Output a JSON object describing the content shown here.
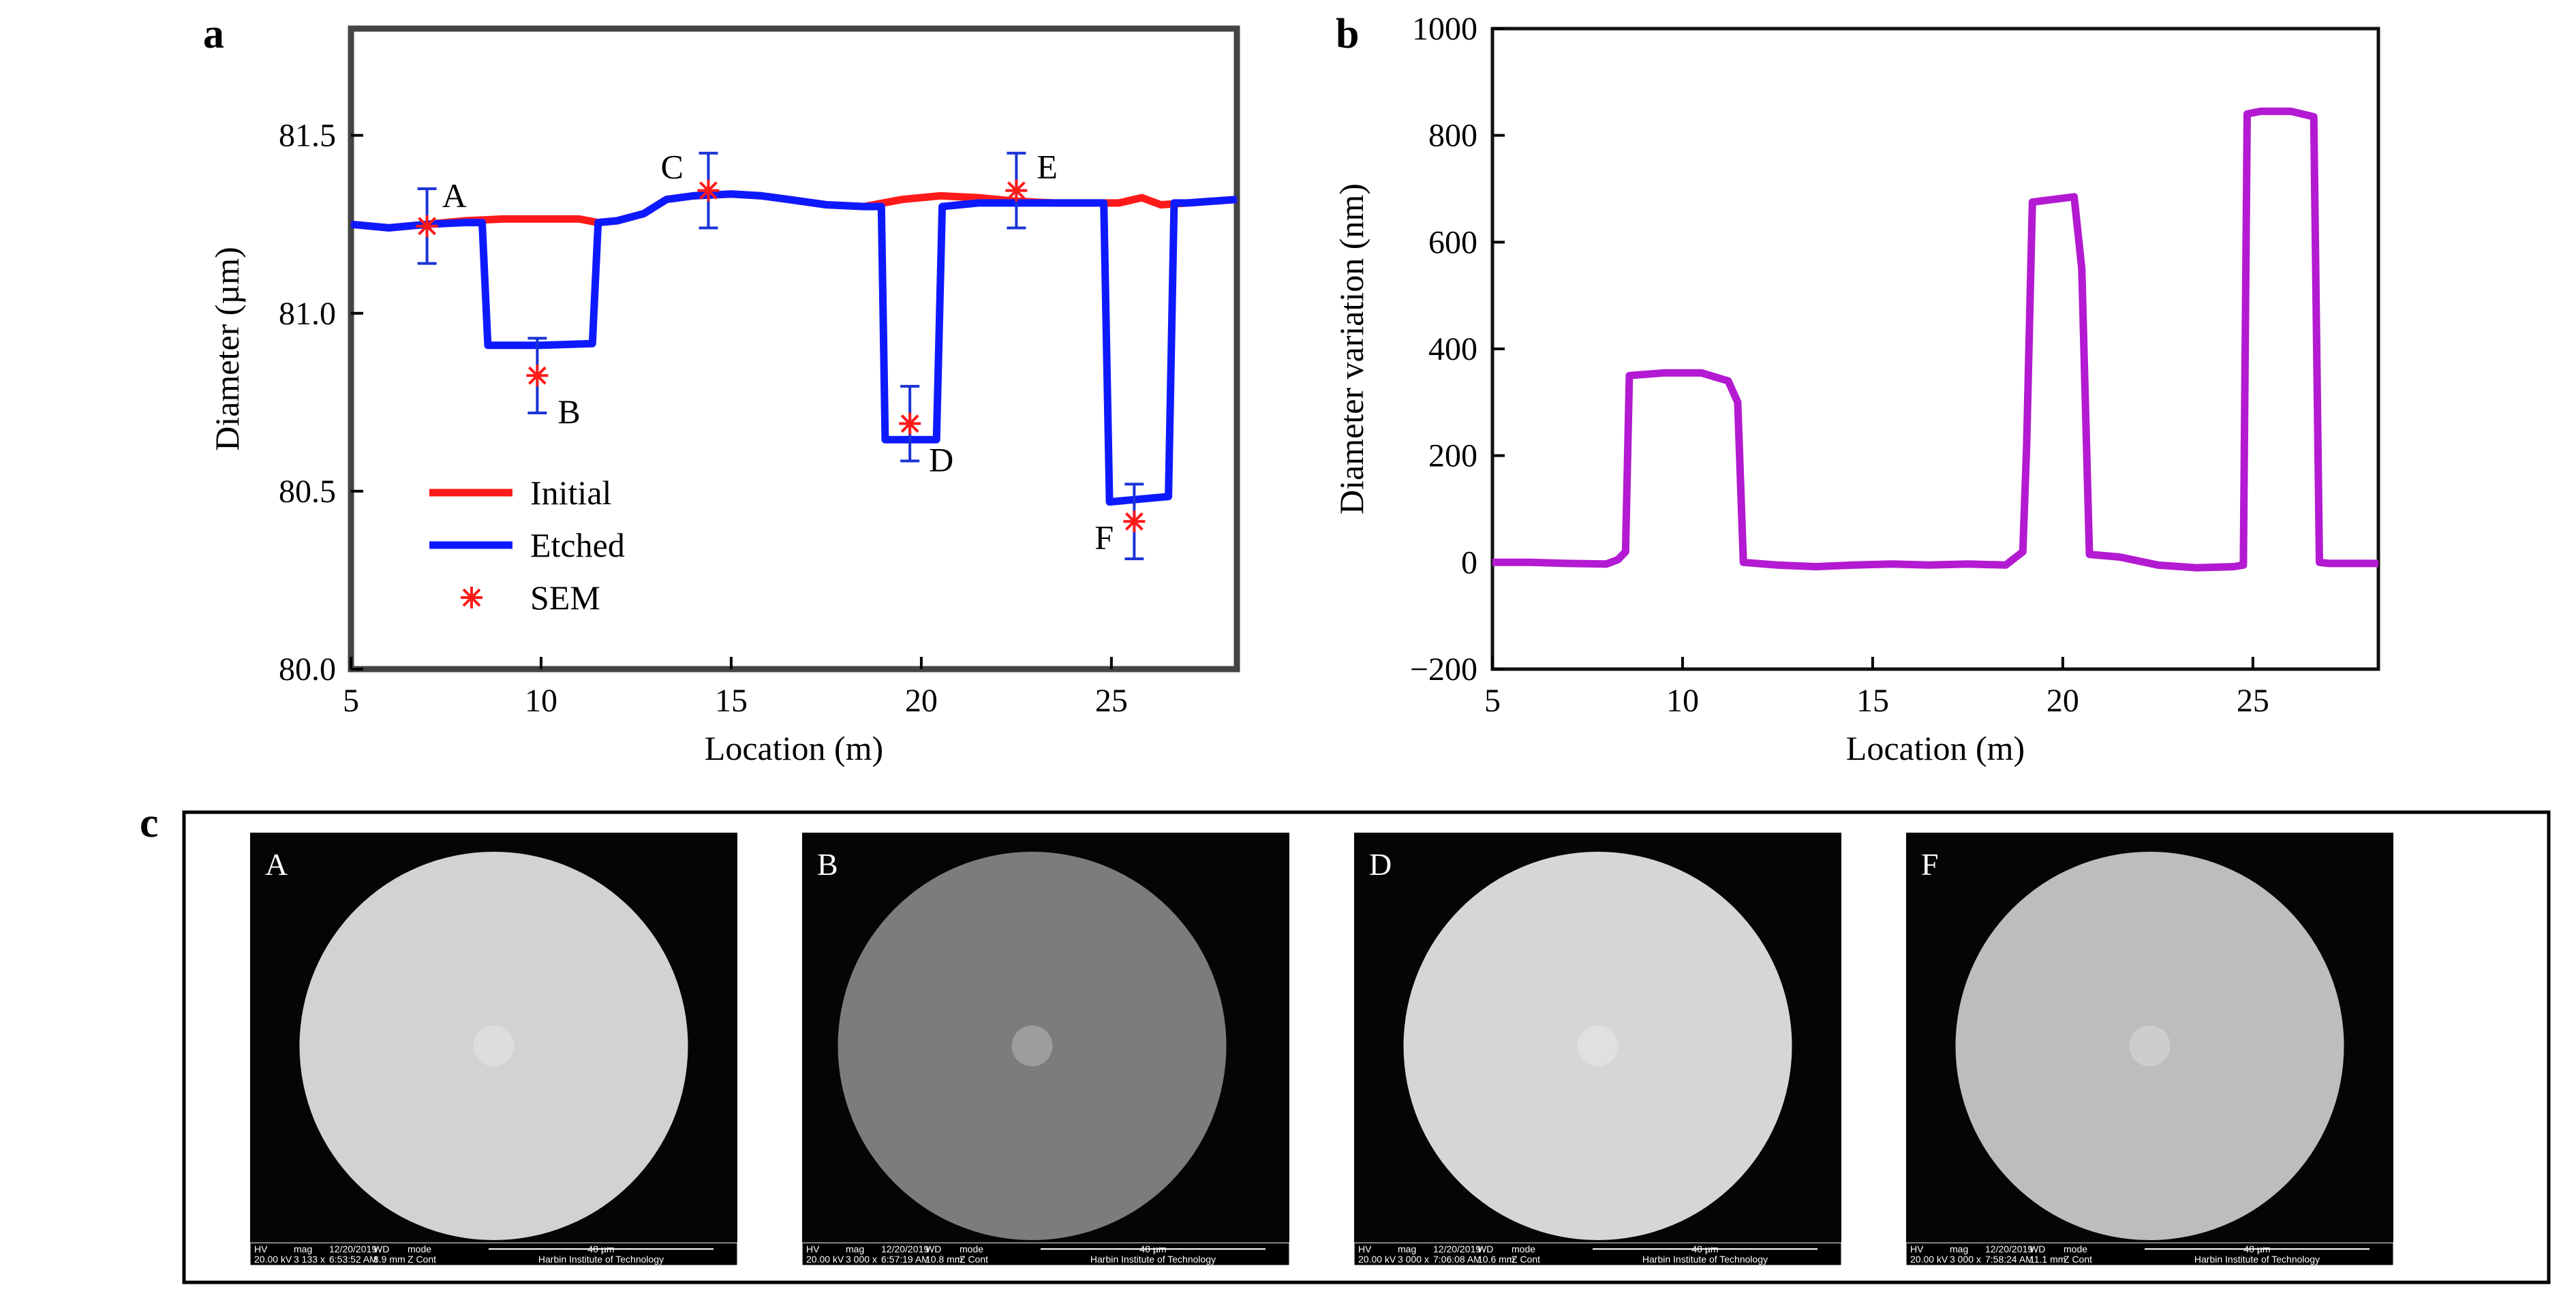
{
  "panels": {
    "a": "a",
    "b": "b",
    "c": "c"
  },
  "chart_data": [
    {
      "panel": "a",
      "type": "line",
      "xlabel": "Location (m)",
      "ylabel": "Diameter (µm)",
      "xlim": [
        5,
        28.3
      ],
      "ylim": [
        80.0,
        81.8
      ],
      "xticks": [
        5,
        10,
        15,
        20,
        25
      ],
      "yticks": [
        80.0,
        80.5,
        81.0,
        81.5
      ],
      "ytick_labels": [
        "80.0",
        "80.5",
        "81.0",
        "81.5"
      ],
      "legend": {
        "placement": "lower-left",
        "entries": [
          "Initial",
          "Etched",
          "SEM"
        ]
      },
      "colors": {
        "initial": "#ff1a1a",
        "etched": "#0d1aff",
        "sem": "#ff1a1a",
        "errorbar": "#1a33d6"
      },
      "series": [
        {
          "name": "Initial",
          "x": [
            5,
            6,
            7,
            8,
            9,
            10,
            11,
            11.5,
            12,
            12.7,
            13.3,
            14,
            15,
            15.8,
            16.5,
            17.5,
            18.5,
            19.5,
            20.5,
            21.5,
            22.5,
            23.5,
            24.5,
            25.2,
            25.8,
            26.3,
            27,
            28.3
          ],
          "y": [
            81.25,
            81.24,
            81.25,
            81.26,
            81.265,
            81.265,
            81.265,
            81.255,
            81.26,
            81.28,
            81.32,
            81.33,
            81.335,
            81.33,
            81.32,
            81.305,
            81.3,
            81.32,
            81.33,
            81.325,
            81.315,
            81.31,
            81.31,
            81.31,
            81.325,
            81.305,
            81.31,
            81.32
          ]
        },
        {
          "name": "Etched",
          "x": [
            5,
            6,
            7,
            8,
            8.45,
            8.6,
            10,
            11.35,
            11.5,
            12,
            12.7,
            13.3,
            14,
            15,
            15.8,
            16.5,
            17.5,
            18.5,
            18.95,
            19.05,
            20.1,
            20.4,
            20.55,
            21.5,
            22.5,
            23.5,
            24.5,
            24.8,
            24.95,
            26.5,
            26.65,
            27,
            28.3
          ],
          "y": [
            81.25,
            81.24,
            81.25,
            81.255,
            81.255,
            80.91,
            80.91,
            80.915,
            81.255,
            81.26,
            81.28,
            81.32,
            81.33,
            81.335,
            81.33,
            81.32,
            81.305,
            81.3,
            81.3,
            80.645,
            80.645,
            80.645,
            81.3,
            81.31,
            81.31,
            81.31,
            81.31,
            81.31,
            80.47,
            80.485,
            81.31,
            81.31,
            81.32
          ]
        },
        {
          "name": "SEM",
          "points": [
            {
              "label": "A",
              "x": 7.0,
              "y": 81.245,
              "err": 0.105
            },
            {
              "label": "B",
              "x": 9.9,
              "y": 80.825,
              "err": 0.105
            },
            {
              "label": "C",
              "x": 14.4,
              "y": 81.345,
              "err": 0.105
            },
            {
              "label": "D",
              "x": 19.7,
              "y": 80.69,
              "err": 0.105
            },
            {
              "label": "E",
              "x": 22.5,
              "y": 81.345,
              "err": 0.105
            },
            {
              "label": "F",
              "x": 25.6,
              "y": 80.415,
              "err": 0.105
            }
          ]
        }
      ]
    },
    {
      "panel": "b",
      "type": "line",
      "xlabel": "Location (m)",
      "ylabel": "Diameter variation (nm)",
      "xlim": [
        5,
        28.3
      ],
      "ylim": [
        -200,
        1000
      ],
      "xticks": [
        5,
        10,
        15,
        20,
        25
      ],
      "yticks": [
        -200,
        0,
        200,
        400,
        600,
        800,
        1000
      ],
      "ytick_labels": [
        "−200",
        "0",
        "200",
        "400",
        "600",
        "800",
        "1000"
      ],
      "colors": {
        "line": "#b31ad1"
      },
      "series": [
        {
          "name": "",
          "x": [
            5,
            6,
            7,
            8,
            8.3,
            8.5,
            8.6,
            9.5,
            10.5,
            11.2,
            11.45,
            11.6,
            12.5,
            13.5,
            14.5,
            15.5,
            16.5,
            17.5,
            18.5,
            18.95,
            19.05,
            19.2,
            20.3,
            20.5,
            20.7,
            21.5,
            22.5,
            23.5,
            24.5,
            24.75,
            24.85,
            25.2,
            26,
            26.6,
            26.75,
            27,
            28.3
          ],
          "y": [
            0,
            0,
            -2,
            -3,
            5,
            20,
            350,
            355,
            355,
            340,
            300,
            0,
            -5,
            -8,
            -5,
            -3,
            -5,
            -3,
            -5,
            20,
            220,
            675,
            685,
            550,
            15,
            10,
            -5,
            -10,
            -8,
            -5,
            840,
            845,
            845,
            835,
            0,
            -2,
            -2
          ]
        }
      ]
    }
  ],
  "sem_images": [
    {
      "label": "A",
      "hv": "20.00 kV",
      "mag": "3 133 x",
      "date": "12/20/2019",
      "time": "6:53:52 AM",
      "wd": "8.9 mm",
      "mode": "Z Cont",
      "scale": "40 µm",
      "inst": "Harbin Institute of Technology"
    },
    {
      "label": "B",
      "hv": "20.00 kV",
      "mag": "3 000 x",
      "date": "12/20/2019",
      "time": "6:57:19 AM",
      "wd": "10.8 mm",
      "mode": "Z Cont",
      "scale": "40 µm",
      "inst": "Harbin Institute of Technology"
    },
    {
      "label": "D",
      "hv": "20.00 kV",
      "mag": "3 000 x",
      "date": "12/20/2019",
      "time": "7:06:08 AM",
      "wd": "10.6 mm",
      "mode": "Z Cont",
      "scale": "40 µm",
      "inst": "Harbin Institute of Technology"
    },
    {
      "label": "F",
      "hv": "20.00 kV",
      "mag": "3 000 x",
      "date": "12/20/2019",
      "time": "7:58:24 AM",
      "wd": "11.1 mm",
      "mode": "Z Cont",
      "scale": "40 µm",
      "inst": "Harbin Institute of Technology"
    }
  ],
  "sem_bar_headers": [
    "HV",
    "mag",
    "",
    "WD",
    "mode"
  ],
  "sem_disc_colors": [
    "#d2d2d2",
    "#7c7c7c",
    "#d6d6d6",
    "#bdbdbd"
  ]
}
